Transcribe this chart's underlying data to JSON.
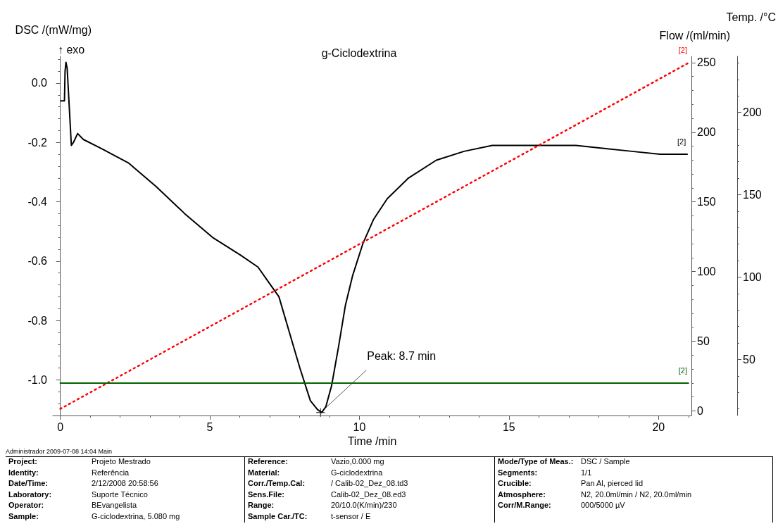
{
  "chart_data": {
    "type": "line",
    "title": "g-Ciclodextrina",
    "xlabel": "Time /min",
    "ylabel": "DSC /(mW/mg)",
    "y2label": "Flow /(ml/min)",
    "y3label": "Temp. /°C",
    "xlim": [
      -0.25,
      21.1
    ],
    "xticks": [
      0,
      5,
      10,
      15,
      20
    ],
    "ylim": [
      -1.12,
      0.09
    ],
    "yticks": [
      {
        "value": -1,
        "label": "-1.0"
      },
      -0.8,
      -0.6,
      -0.4,
      -0.2,
      {
        "value": 0,
        "label": "0.0"
      }
    ],
    "y2lim": [
      -3.3,
      254.5
    ],
    "y2ticks": [
      0,
      50,
      100,
      150,
      200,
      250
    ],
    "y3lim": [
      16,
      234
    ],
    "y3ticks": [
      50,
      100,
      150,
      200
    ],
    "grid": false,
    "legend": false,
    "marker": "none",
    "series": [
      {
        "name": "[2]",
        "color": "#000000",
        "line_style": "solid",
        "x": [
          0.02,
          0.14,
          0.16,
          0.19,
          0.23,
          0.3,
          0.37,
          0.44,
          0.58,
          0.77,
          1.36,
          2.29,
          3.22,
          4.16,
          5.09,
          6.03,
          6.61,
          6.96,
          7.31,
          7.66,
          8.01,
          8.36,
          8.6,
          8.74,
          8.88,
          9.07,
          9.3,
          9.53,
          9.77,
          10.12,
          10.47,
          10.93,
          11.64,
          12.57,
          13.5,
          14.44,
          15.37,
          16.31,
          17.24,
          18.18,
          19.11,
          20.05,
          20.96
        ],
        "values": [
          -0.06,
          -0.06,
          0.04,
          0.07,
          0.05,
          -0.08,
          -0.21,
          -0.2,
          -0.17,
          -0.19,
          -0.22,
          -0.27,
          -0.35,
          -0.44,
          -0.52,
          -0.58,
          -0.62,
          -0.67,
          -0.72,
          -0.84,
          -0.96,
          -1.07,
          -1.1,
          -1.11,
          -1.09,
          -1.02,
          -0.89,
          -0.75,
          -0.65,
          -0.54,
          -0.46,
          -0.39,
          -0.32,
          -0.26,
          -0.23,
          -0.21,
          -0.21,
          -0.21,
          -0.21,
          -0.22,
          -0.23,
          -0.24,
          -0.24
        ]
      },
      {
        "name": "[2]",
        "color": "#ff0000",
        "line_style": "dotted",
        "axis": "y3",
        "x": [
          0,
          21
        ],
        "values": [
          20,
          230
        ]
      },
      {
        "name": "[2]",
        "color": "#006400",
        "line_style": "solid",
        "axis": "y2",
        "x": [
          0,
          21
        ],
        "values": [
          20,
          20
        ]
      }
    ],
    "annotations": [
      "Administrador  2009-07-08 14:04  Main",
      "↑ exo",
      {
        "text": "Peak: 8.7 min",
        "x": 8.7,
        "y": -1.11
      },
      "Project: Projeto Mestrado",
      "Identity: Referência",
      "Date/Time: 2/12/2008 20:58:56",
      "Laboratory: Suporte Técnico",
      "Operator: BEvangelista",
      "Sample: G-ciclodextrina, 5.080 mg",
      "Reference: Vazio,0.000 mg",
      "Material: G-ciclodextrina",
      "Corr./Temp.Cal: / Calib-02_Dez_08.td3",
      "Sens.File: Calib-02_Dez_08.ed3",
      "Range: 20/10.0(K/min)/230",
      "Sample Car./TC: t-sensor / E",
      "Mode/Type of Meas.: DSC / Sample",
      "Segments: 1/1",
      "Crucible: Pan Al, pierced lid",
      "Atmosphere: N2, 20.0ml/min / N2, 20.0ml/min",
      "Corr/M.Range: 000/5000 µV"
    ]
  }
}
